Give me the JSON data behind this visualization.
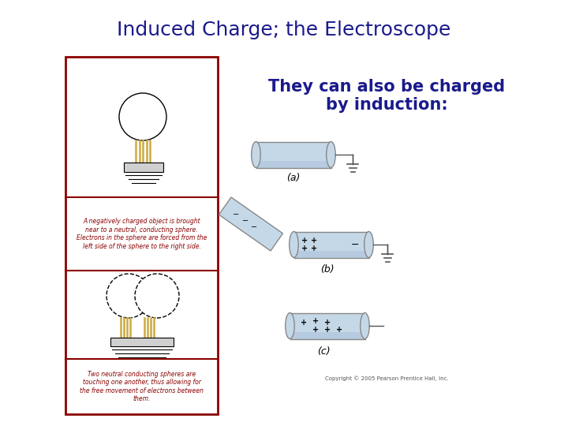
{
  "title": "Induced Charge; the Electroscope",
  "title_color": "#1a1a8c",
  "subtitle_line1": "They can also be charged",
  "subtitle_line2": "by induction:",
  "subtitle_color": "#1a1a8c",
  "background_color": "#ffffff",
  "left_box_border_color": "#8b0000",
  "text1": "A negatively charged object is brought\nnear to a neutral, conducting sphere.\nElectrons in the sphere are forced from the\nleft side of the sphere to the right side.",
  "text2": "Two neutral conducting spheres are\ntouching one another, thus allowing for\nthe free movement of electrons between\nthem.",
  "label_a": "(a)",
  "label_b": "(b)",
  "label_c": "(c)",
  "copyright": "Copyright © 2005 Pearson Prentice Hall, Inc.",
  "cylinder_color": "#c5d8e8",
  "cylinder_edge_color": "#888888",
  "rod_color": "#c5d8e8",
  "hatch_color": "#ccaa44",
  "title_fontsize": 18,
  "subtitle_fontsize": 15,
  "label_fontsize": 9,
  "text_fontsize": 5.5,
  "copyright_fontsize": 5
}
